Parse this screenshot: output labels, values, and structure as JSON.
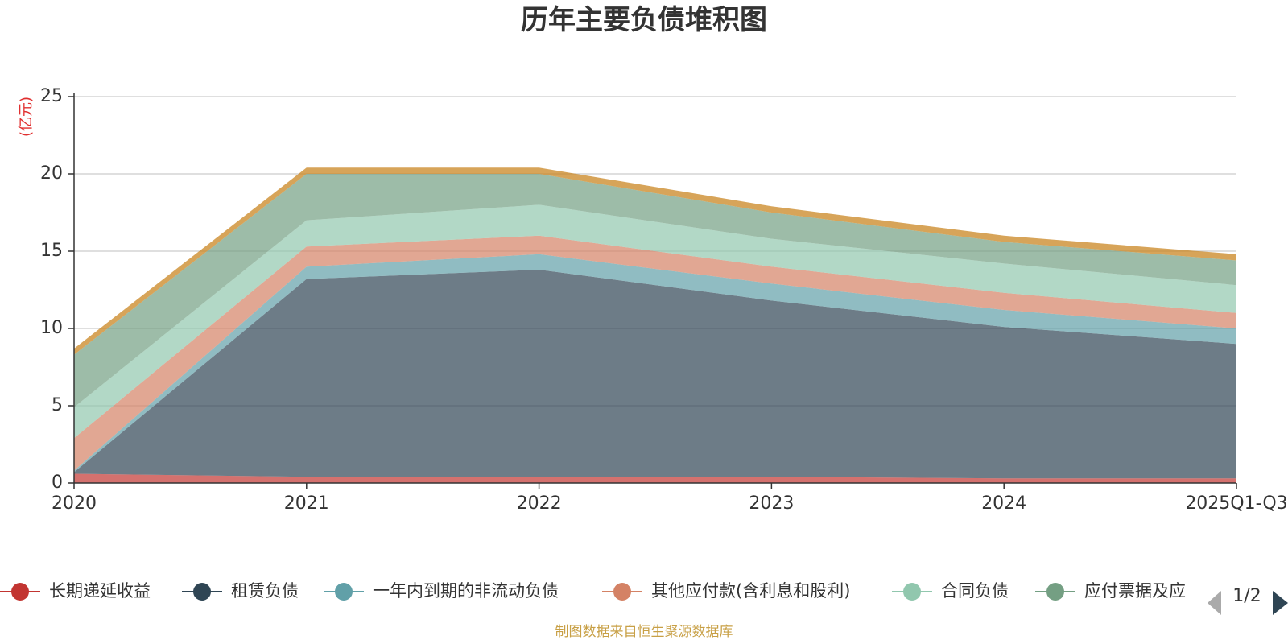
{
  "chart_data": {
    "type": "area",
    "stacked": true,
    "title": "历年主要负债堆积图",
    "unit_label": "(亿元)",
    "categories": [
      "2020",
      "2021",
      "2022",
      "2023",
      "2024",
      "2025Q1-Q3"
    ],
    "ylim": [
      0,
      25
    ],
    "yticks": [
      0,
      5,
      10,
      15,
      20,
      25
    ],
    "grid": true,
    "legend_position": "bottom",
    "series": [
      {
        "name": "长期递延收益",
        "color": "#c23531",
        "values": [
          0.6,
          0.4,
          0.4,
          0.4,
          0.3,
          0.3
        ]
      },
      {
        "name": "租赁负债",
        "color": "#2f4554",
        "values": [
          0.1,
          12.8,
          13.4,
          11.4,
          9.8,
          8.7
        ]
      },
      {
        "name": "一年内到期的非流动负债",
        "color": "#61a0a8",
        "values": [
          0.1,
          0.8,
          1.0,
          1.1,
          1.1,
          1.0
        ]
      },
      {
        "name": "其他应付款(含利息和股利)",
        "color": "#d48265",
        "values": [
          2.1,
          1.3,
          1.2,
          1.1,
          1.1,
          1.0
        ]
      },
      {
        "name": "合同负债",
        "color": "#91c7ae",
        "values": [
          2.0,
          1.7,
          2.0,
          1.8,
          1.9,
          1.8
        ]
      },
      {
        "name": "应付票据及应付账款",
        "color": "#749f83",
        "values": [
          3.4,
          3.0,
          2.0,
          1.7,
          1.4,
          1.6
        ]
      },
      {
        "name": "",
        "color": "#ca8622",
        "values": [
          0.4,
          0.4,
          0.4,
          0.4,
          0.4,
          0.4
        ]
      }
    ],
    "legend_visible_labels": [
      "长期递延收益",
      "租赁负债",
      "一年内到期的非流动负债",
      "其他应付款(含利息和股利)",
      "合同负债",
      "应付票据及应"
    ]
  },
  "legend_pager": "1/2",
  "source_text": "制图数据来自恒生聚源数据库",
  "colors": {
    "source": "#c8a046",
    "unit": "#e03030",
    "grid": "#cccccc",
    "axis": "#333333"
  }
}
